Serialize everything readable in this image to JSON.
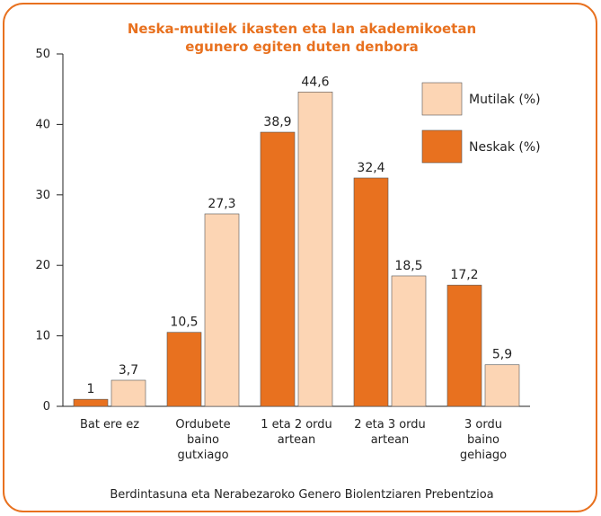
{
  "chart_data": {
    "type": "bar",
    "title": "Neska-mutilek ikasten eta lan akademikoetan\negunero egiten duten denbora",
    "source": "Berdintasuna eta Nerabezaroko Genero Biolentziaren Prebentzioa",
    "categories": [
      "Bat ere ez",
      "Ordubete\nbaino\ngutxiago",
      "1 eta 2 ordu\nartean",
      "2 eta 3 ordu\nartean",
      "3 ordu\nbaino\ngehiago"
    ],
    "series": [
      {
        "name": "Neskak (%)",
        "color": "#e8711f",
        "values": [
          1,
          10.5,
          38.9,
          32.4,
          17.2
        ],
        "value_labels": [
          "1",
          "10,5",
          "38,9",
          "32,4",
          "17,2"
        ]
      },
      {
        "name": "Mutilak (%)",
        "color": "#fcd5b4",
        "values": [
          3.7,
          27.3,
          44.6,
          18.5,
          5.9
        ],
        "value_labels": [
          "3,7",
          "27,3",
          "44,6",
          "18,5",
          "5,9"
        ]
      }
    ],
    "ylim": [
      0,
      50
    ],
    "yticks": [
      0,
      10,
      20,
      30,
      40,
      50
    ],
    "legend": "top-right"
  }
}
